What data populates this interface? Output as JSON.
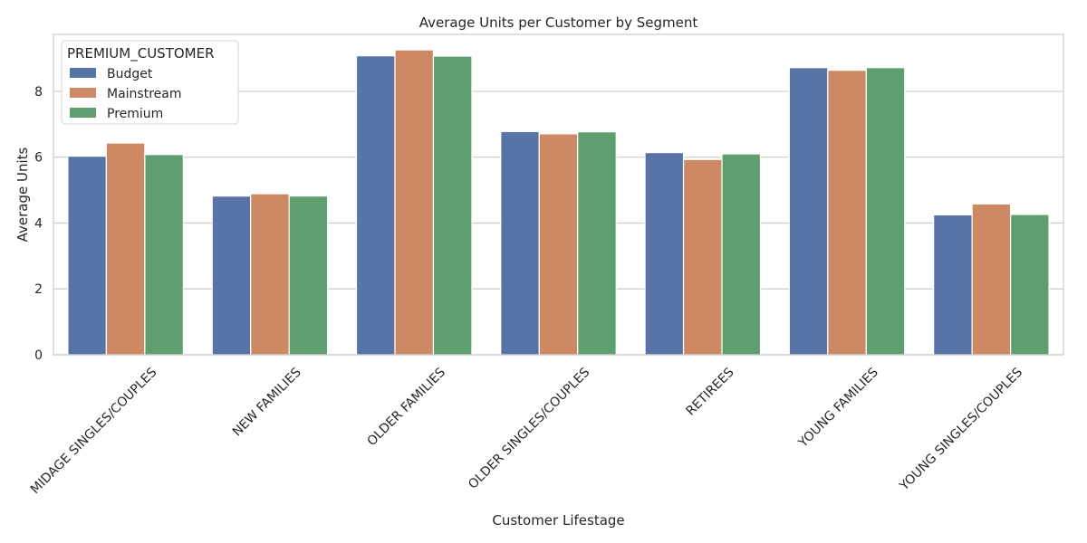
{
  "chart_data": {
    "type": "bar",
    "title": "Average Units per Customer by Segment",
    "xlabel": "Customer Lifestage",
    "ylabel": "Average Units",
    "categories": [
      "MIDAGE SINGLES/COUPLES",
      "NEW FAMILIES",
      "OLDER FAMILIES",
      "OLDER SINGLES/COUPLES",
      "RETIREES",
      "YOUNG FAMILIES",
      "YOUNG SINGLES/COUPLES"
    ],
    "series": [
      {
        "name": "Budget",
        "color": "#5874a6",
        "values": [
          6.03,
          4.82,
          9.08,
          6.78,
          6.14,
          8.72,
          4.25
        ]
      },
      {
        "name": "Mainstream",
        "color": "#cc8963",
        "values": [
          6.43,
          4.89,
          9.26,
          6.71,
          5.93,
          8.64,
          4.58
        ]
      },
      {
        "name": "Premium",
        "color": "#5f9e6e",
        "values": [
          6.08,
          4.82,
          9.07,
          6.77,
          6.1,
          8.72,
          4.26
        ]
      }
    ],
    "yticks": [
      0,
      2,
      4,
      6,
      8
    ],
    "ylim": [
      0,
      9.73
    ],
    "grid": "horizontal",
    "legend_title": "PREMIUM_CUSTOMER",
    "legend_position": "top-left"
  }
}
